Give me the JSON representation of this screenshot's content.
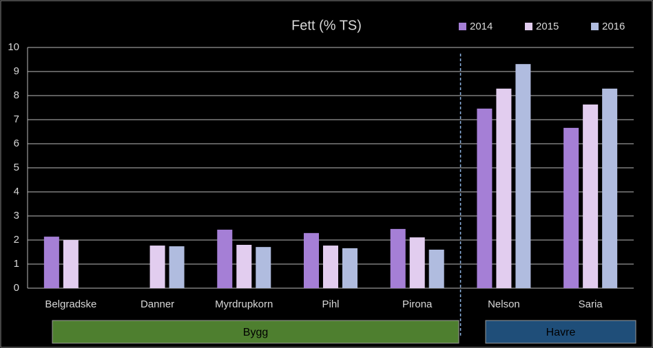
{
  "chart_data": {
    "type": "bar",
    "title": "Fett (% TS)",
    "categories": [
      "Belgradske",
      "Danner",
      "Myrdrupkorn",
      "Pihl",
      "Pirona",
      "Nelson",
      "Saria"
    ],
    "series": [
      {
        "name": "2014",
        "color": "#a57fd6",
        "values": [
          2.14,
          null,
          2.43,
          2.29,
          2.46,
          7.46,
          6.66
        ]
      },
      {
        "name": "2015",
        "color": "#e2cdef",
        "values": [
          2.0,
          1.77,
          1.8,
          1.77,
          2.11,
          8.29,
          7.63
        ]
      },
      {
        "name": "2016",
        "color": "#b0bcdf",
        "values": [
          null,
          1.74,
          1.71,
          1.66,
          1.6,
          9.31,
          8.29
        ]
      }
    ],
    "groups": [
      "Bygg",
      "Havre"
    ],
    "ylim": [
      0,
      10
    ],
    "yticks": [
      0,
      1,
      2,
      3,
      4,
      5,
      6,
      7,
      8,
      9,
      10
    ],
    "grid": true
  }
}
